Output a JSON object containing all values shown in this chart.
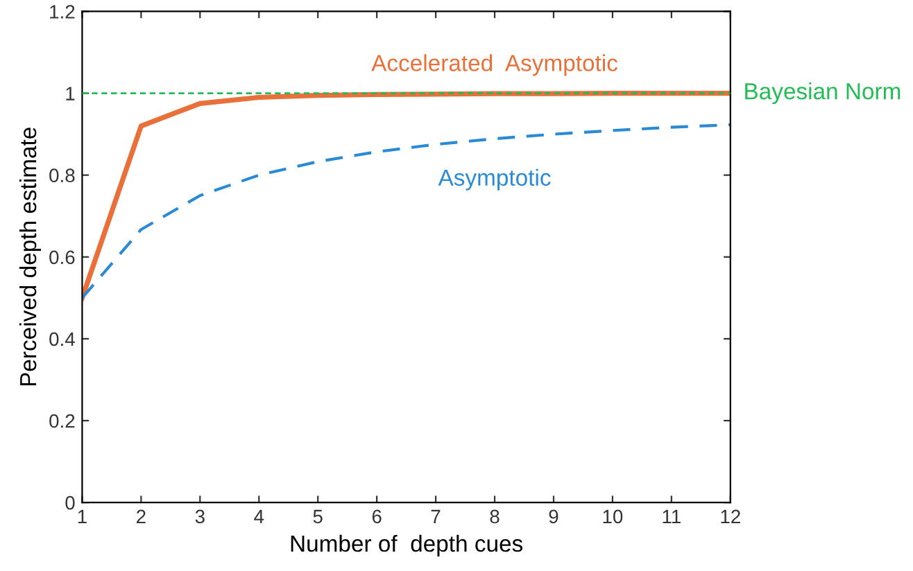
{
  "chart_data": {
    "type": "line",
    "xlabel": "Number of  depth cues",
    "ylabel": "Perceived depth estimate",
    "x": [
      1,
      2,
      3,
      4,
      5,
      6,
      7,
      8,
      9,
      10,
      11,
      12
    ],
    "series": [
      {
        "name": "Accelerated  Asymptotic",
        "color": "#e8703a",
        "line_style": "solid",
        "values": [
          0.5,
          0.92,
          0.975,
          0.99,
          0.995,
          0.997,
          0.998,
          0.999,
          0.999,
          1.0,
          1.0,
          1.0
        ]
      },
      {
        "name": "Asymptotic",
        "color": "#2a8ad6",
        "line_style": "dashed",
        "values": [
          0.5,
          0.667,
          0.75,
          0.8,
          0.833,
          0.857,
          0.875,
          0.889,
          0.9,
          0.909,
          0.917,
          0.923
        ]
      }
    ],
    "ref_lines": [
      {
        "axis": "y",
        "value": 1,
        "label": "Bayesian Norm",
        "color": "#22bb55",
        "line_style": "dashed"
      }
    ],
    "xlim": [
      1,
      12
    ],
    "ylim": [
      0,
      1.2
    ],
    "xticks": [
      1,
      2,
      3,
      4,
      5,
      6,
      7,
      8,
      9,
      10,
      11,
      12
    ],
    "yticks": [
      0,
      0.2,
      0.4,
      0.6,
      0.8,
      1,
      1.2
    ],
    "grid": false,
    "legend": false,
    "marker": "none"
  }
}
